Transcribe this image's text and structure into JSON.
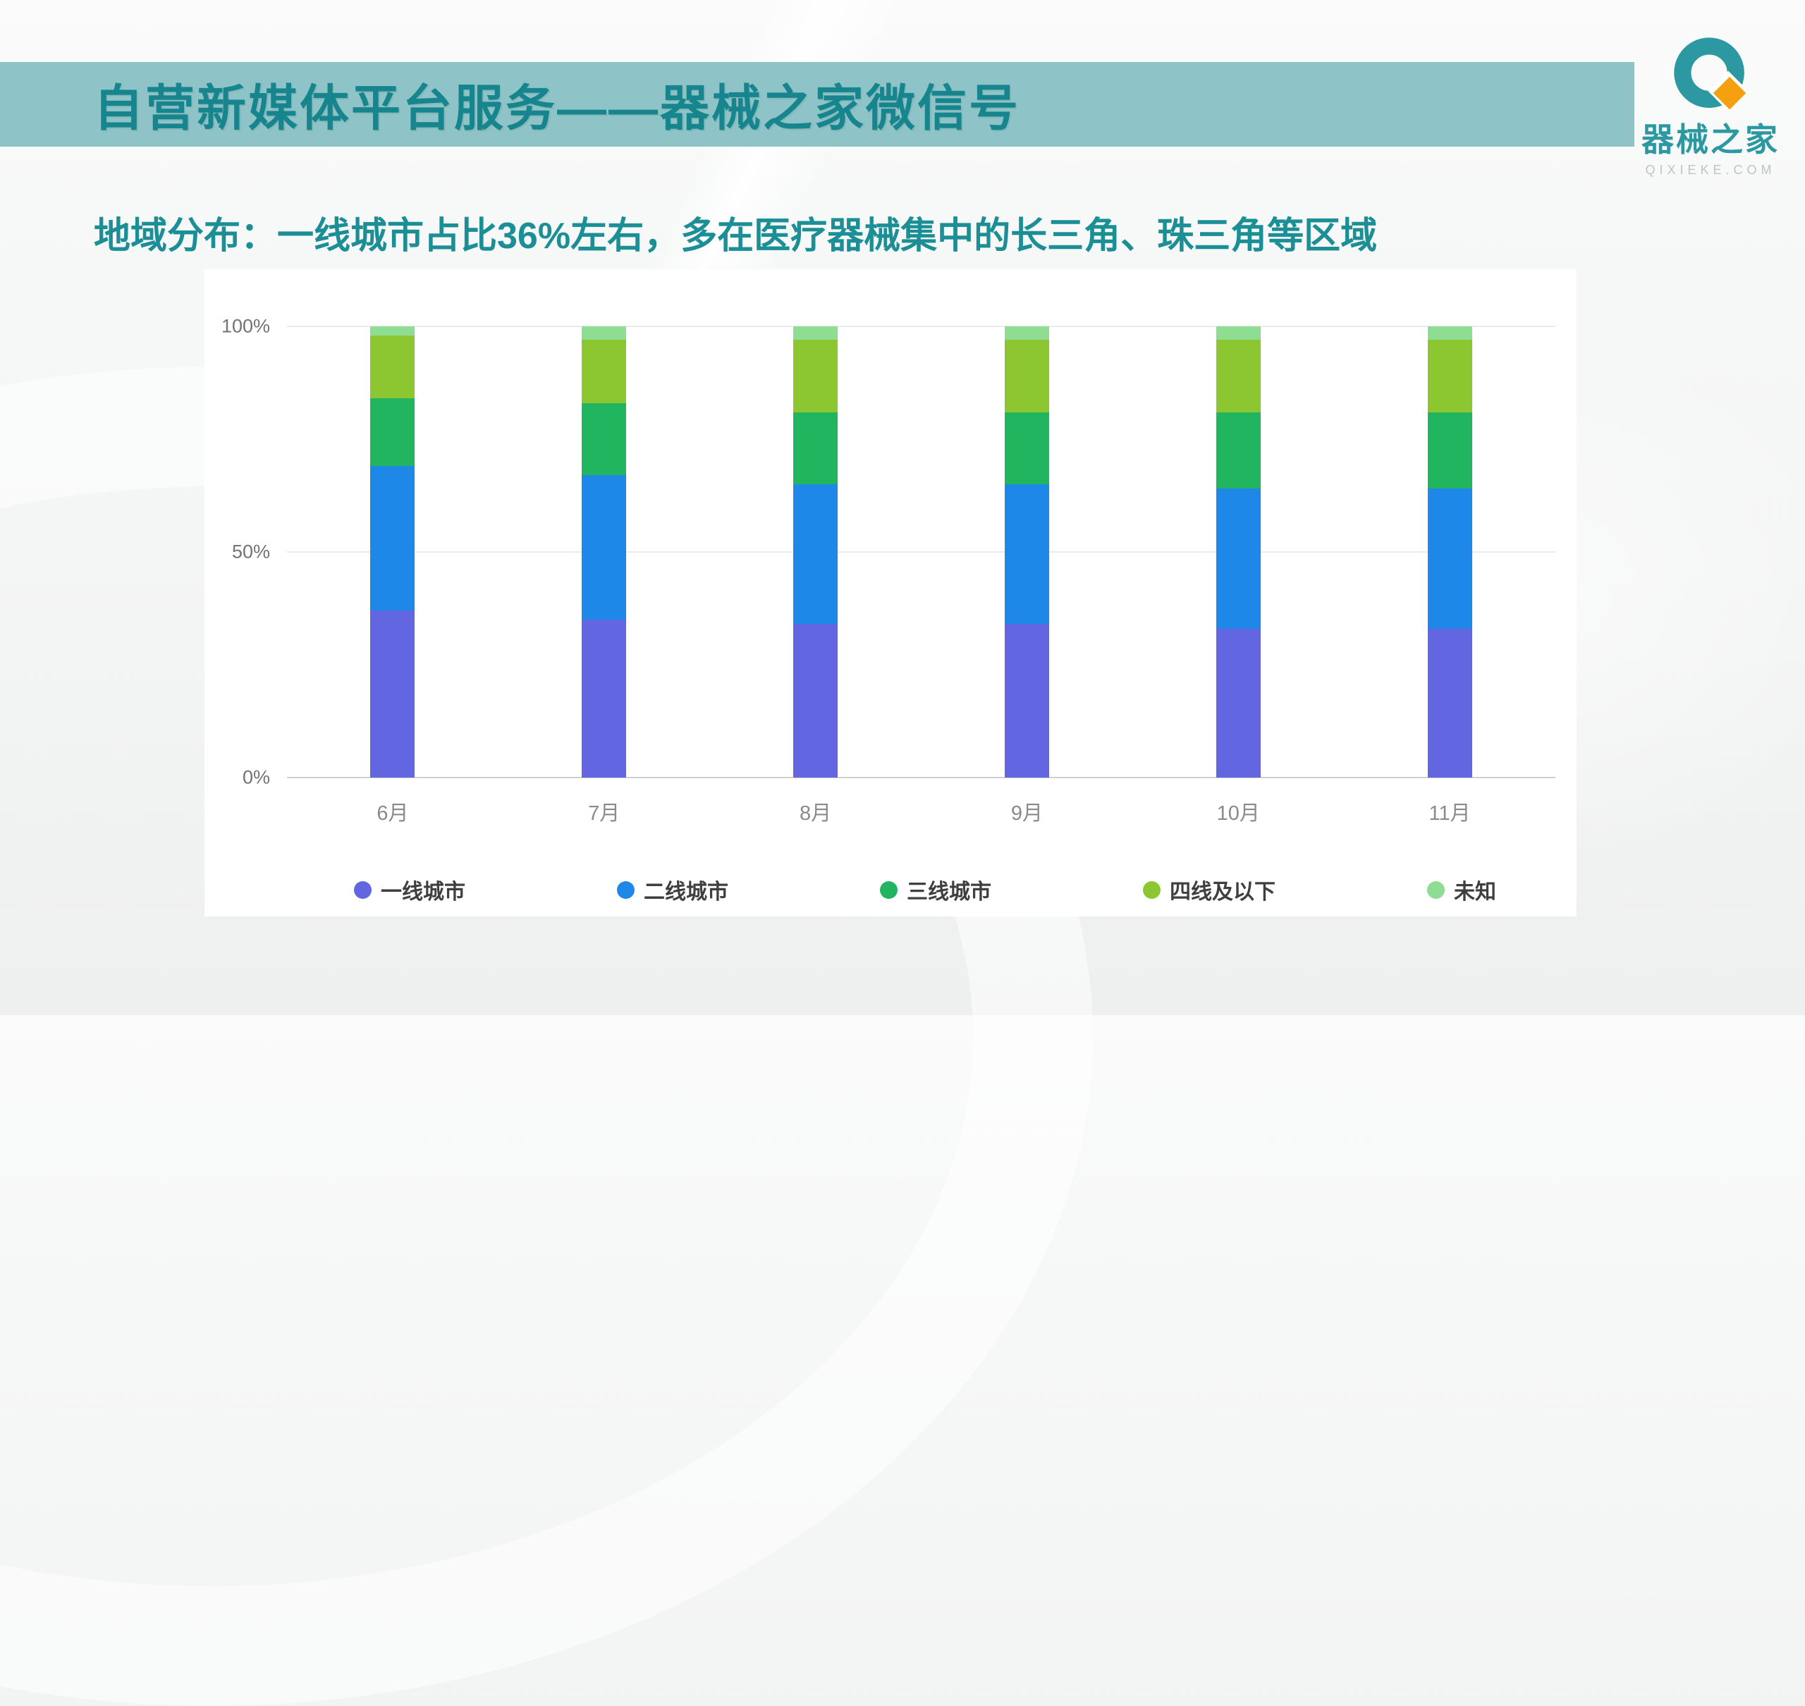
{
  "header": {
    "title": "自营新媒体平台服务——器械之家微信号",
    "band_color": "#8ec4c7",
    "title_color": "#17858e"
  },
  "logo": {
    "name": "器械之家",
    "domain": "QIXIEKE.COM",
    "teal": "#2b98a2",
    "orange": "#f5a00f"
  },
  "subtitle": {
    "text": "地域分布：一线城市占比36%左右，多在医疗器械集中的长三角、珠三角等区域"
  },
  "chart_data": {
    "type": "bar",
    "stacked": true,
    "percent": true,
    "title": "",
    "xlabel": "",
    "ylabel": "",
    "ylim": [
      0,
      100
    ],
    "grid": true,
    "legend_position": "bottom",
    "categories": [
      "6月",
      "7月",
      "8月",
      "9月",
      "10月",
      "11月"
    ],
    "series": [
      {
        "name": "一线城市",
        "color": "#6366e1",
        "values": [
          37,
          35,
          34,
          34,
          33,
          33
        ]
      },
      {
        "name": "二线城市",
        "color": "#1e88e8",
        "values": [
          32,
          32,
          31,
          31,
          31,
          31
        ]
      },
      {
        "name": "三线城市",
        "color": "#20b55e",
        "values": [
          15,
          16,
          16,
          16,
          17,
          17
        ]
      },
      {
        "name": "四线及以下",
        "color": "#8cc631",
        "values": [
          14,
          14,
          16,
          16,
          16,
          16
        ]
      },
      {
        "name": "未知",
        "color": "#8fdc93",
        "values": [
          2,
          3,
          3,
          3,
          3,
          3
        ]
      }
    ],
    "yticks": [
      {
        "label": "0%",
        "value": 0
      },
      {
        "label": "50%",
        "value": 50
      },
      {
        "label": "100%",
        "value": 100
      }
    ]
  }
}
